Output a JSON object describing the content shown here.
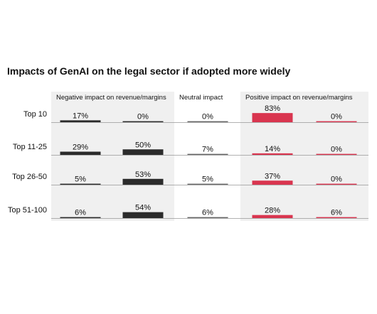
{
  "chart_data": {
    "type": "bar",
    "title": "Impacts of GenAI on the legal sector if adopted more widely",
    "categories": [
      "Top 10",
      "Top 11-25",
      "Top 26-50",
      "Top 51-100"
    ],
    "groups": [
      {
        "label": "Negative impact on revenue/margins",
        "shaded": true
      },
      {
        "label": "Neutral impact",
        "shaded": false
      },
      {
        "label": "Positive impact on revenue/margins",
        "shaded": true
      }
    ],
    "series": [
      {
        "group": 0,
        "color": "#2b2b2b",
        "values": [
          17,
          29,
          5,
          6
        ]
      },
      {
        "group": 0,
        "color": "#2b2b2b",
        "values": [
          0,
          50,
          53,
          54
        ]
      },
      {
        "group": 1,
        "color": "#666666",
        "values": [
          0,
          7,
          5,
          6
        ]
      },
      {
        "group": 2,
        "color": "#d9354f",
        "values": [
          83,
          14,
          37,
          28
        ]
      },
      {
        "group": 2,
        "color": "#d9354f",
        "values": [
          0,
          0,
          0,
          6
        ]
      }
    ],
    "value_suffix": "%",
    "ylim": [
      0,
      100
    ],
    "grid": false
  },
  "colors": {
    "panel_shade": "#f0f0f0",
    "baseline": "#999999"
  }
}
